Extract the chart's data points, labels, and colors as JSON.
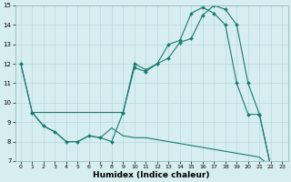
{
  "xlabel": "Humidex (Indice chaleur)",
  "bg_color": "#d6eef0",
  "line_color": "#1a7a6e",
  "grid_color": "#b8d8dc",
  "xlim": [
    -0.5,
    23.5
  ],
  "ylim": [
    7,
    15
  ],
  "xticks": [
    0,
    1,
    2,
    3,
    4,
    5,
    6,
    7,
    8,
    9,
    10,
    11,
    12,
    13,
    14,
    15,
    16,
    17,
    18,
    19,
    20,
    21,
    22,
    23
  ],
  "yticks": [
    7,
    8,
    9,
    10,
    11,
    12,
    13,
    14,
    15
  ],
  "series1_x": [
    0,
    1,
    2,
    3,
    4,
    5,
    6,
    7,
    8,
    9,
    10,
    11,
    12,
    13,
    14,
    15,
    16,
    17,
    18,
    19,
    20,
    21,
    22
  ],
  "series1_y": [
    12,
    9.5,
    8.8,
    8.5,
    8.0,
    8.0,
    8.3,
    8.2,
    8.0,
    9.5,
    12.0,
    11.7,
    12.0,
    13.0,
    13.2,
    14.6,
    14.9,
    14.6,
    14.0,
    11.0,
    9.4,
    9.4,
    6.7
  ],
  "series2_x": [
    0,
    1,
    9,
    10,
    11,
    12,
    13,
    14,
    15,
    16,
    17,
    18,
    19,
    20,
    21,
    22
  ],
  "series2_y": [
    12,
    9.5,
    9.5,
    11.8,
    11.6,
    12.0,
    12.3,
    13.1,
    13.3,
    14.5,
    15.0,
    14.8,
    14.0,
    11.0,
    9.4,
    6.7
  ],
  "series3_x": [
    1,
    2,
    3,
    4,
    5,
    6,
    7,
    8,
    9,
    10,
    11,
    12,
    13,
    14,
    15,
    16,
    17,
    18,
    19,
    20,
    21,
    22
  ],
  "series3_y": [
    9.5,
    8.8,
    8.5,
    8.0,
    8.0,
    8.3,
    8.2,
    8.7,
    8.3,
    8.2,
    8.2,
    8.1,
    8.0,
    7.9,
    7.8,
    7.7,
    7.6,
    7.5,
    7.4,
    7.3,
    7.2,
    6.7
  ]
}
